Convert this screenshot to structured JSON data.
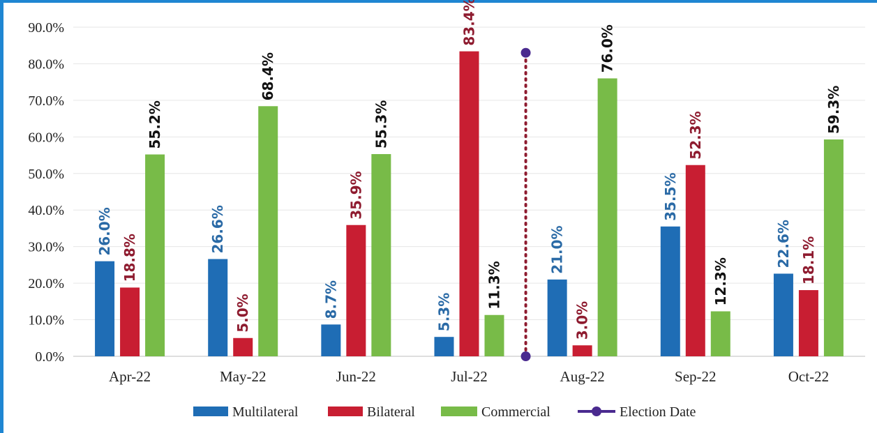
{
  "chart_data": {
    "type": "bar",
    "categories": [
      "Apr-22",
      "May-22",
      "Jun-22",
      "Jul-22",
      "Aug-22",
      "Sep-22",
      "Oct-22"
    ],
    "series": [
      {
        "name": "Multilateral",
        "color": "#1f6db5",
        "label_color": "#2a6aa6",
        "values": [
          26.0,
          26.6,
          8.7,
          5.3,
          21.0,
          35.5,
          22.6
        ],
        "labels": [
          "26.0%",
          "26.6%",
          "8.7%",
          "5.3%",
          "21.0%",
          "35.5%",
          "22.6%"
        ]
      },
      {
        "name": "Bilateral",
        "color": "#c81e32",
        "label_color": "#8e1b2f",
        "values": [
          18.8,
          5.0,
          35.9,
          83.4,
          3.0,
          52.3,
          18.1
        ],
        "labels": [
          "18.8%",
          "5.0%",
          "35.9%",
          "83.4%",
          "3.0%",
          "52.3%",
          "18.1%"
        ]
      },
      {
        "name": "Commercial",
        "color": "#78bb48",
        "label_color": "#111111",
        "values": [
          55.2,
          68.4,
          55.3,
          11.3,
          76.0,
          12.3,
          59.3
        ],
        "labels": [
          "55.2%",
          "68.4%",
          "55.3%",
          "11.3%",
          "76.0%",
          "12.3%",
          "59.3%"
        ]
      }
    ],
    "election_marker": {
      "name": "Election Date",
      "color": "#4a2a8f",
      "line_color": "#8e1b2f",
      "position": "between Jul-22 and Aug-22",
      "y_range": [
        0,
        83
      ]
    },
    "y_ticks": [
      "0.0%",
      "10.0%",
      "20.0%",
      "30.0%",
      "40.0%",
      "50.0%",
      "60.0%",
      "70.0%",
      "80.0%",
      "90.0%"
    ],
    "ylim": [
      0,
      90
    ],
    "grid": true,
    "legend_position": "bottom",
    "title": "",
    "xlabel": "",
    "ylabel": ""
  }
}
